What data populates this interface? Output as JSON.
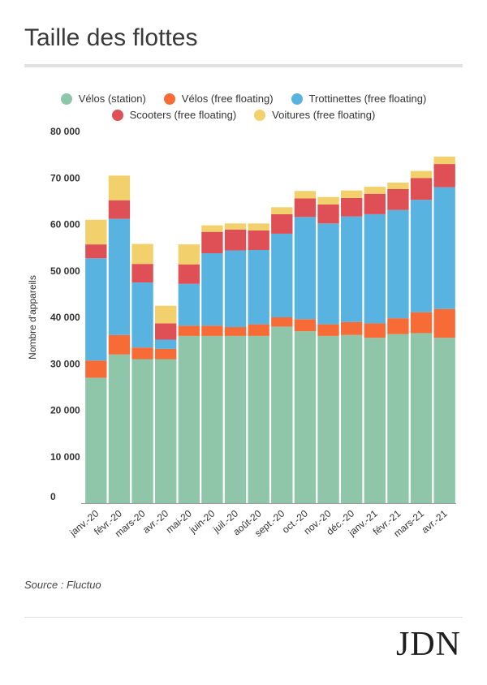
{
  "title": "Taille des flottes",
  "source": "Source : Fluctuo",
  "logo_text": "JDN",
  "chart_data": {
    "type": "bar",
    "stacked": true,
    "title": "Taille des flottes",
    "xlabel": "",
    "ylabel": "Nombre d'appareils",
    "ylim": [
      0,
      80000
    ],
    "yticks": [
      0,
      10000,
      20000,
      30000,
      40000,
      50000,
      60000,
      70000,
      80000
    ],
    "ytick_labels": [
      "0",
      "10 000",
      "20 000",
      "30 000",
      "40 000",
      "50 000",
      "60 000",
      "70 000",
      "80 000"
    ],
    "categories": [
      "janv.-20",
      "févr.-20",
      "mars-20",
      "avr.-20",
      "mai-20",
      "juin-20",
      "juil.-20",
      "août-20",
      "sept.-20",
      "oct.-20",
      "nov.-20",
      "déc.-20",
      "janv.-21",
      "févr.-21",
      "mars-21",
      "avr.-21"
    ],
    "legend_position": "top",
    "grid": false,
    "series": [
      {
        "name": "Vélos (station)",
        "color": "#8fc5a8",
        "values": [
          27000,
          32000,
          31000,
          31000,
          36000,
          36000,
          36000,
          36000,
          38000,
          37000,
          36000,
          36200,
          35600,
          36400,
          36600,
          35600
        ]
      },
      {
        "name": "Vélos (free floating)",
        "color": "#f76b36",
        "values": [
          3700,
          4200,
          2500,
          2200,
          2200,
          2200,
          1900,
          2500,
          2000,
          2600,
          2500,
          2800,
          3100,
          3400,
          4500,
          6200
        ]
      },
      {
        "name": "Trottinettes (free floating)",
        "color": "#59b3e0",
        "values": [
          22000,
          25000,
          14000,
          2000,
          9000,
          15600,
          16500,
          16000,
          18000,
          22000,
          21700,
          22700,
          23500,
          23300,
          24200,
          26200
        ]
      },
      {
        "name": "Scooters (free floating)",
        "color": "#de5055",
        "values": [
          3000,
          4000,
          4000,
          3500,
          4200,
          4600,
          4500,
          4200,
          4200,
          4000,
          4100,
          4000,
          4400,
          4500,
          4700,
          5000
        ]
      },
      {
        "name": "Voitures (free floating)",
        "color": "#f2d06b",
        "values": [
          5300,
          5300,
          4300,
          3800,
          4300,
          1400,
          1300,
          1500,
          1500,
          1600,
          1600,
          1600,
          1500,
          1400,
          1500,
          1600
        ]
      }
    ]
  }
}
